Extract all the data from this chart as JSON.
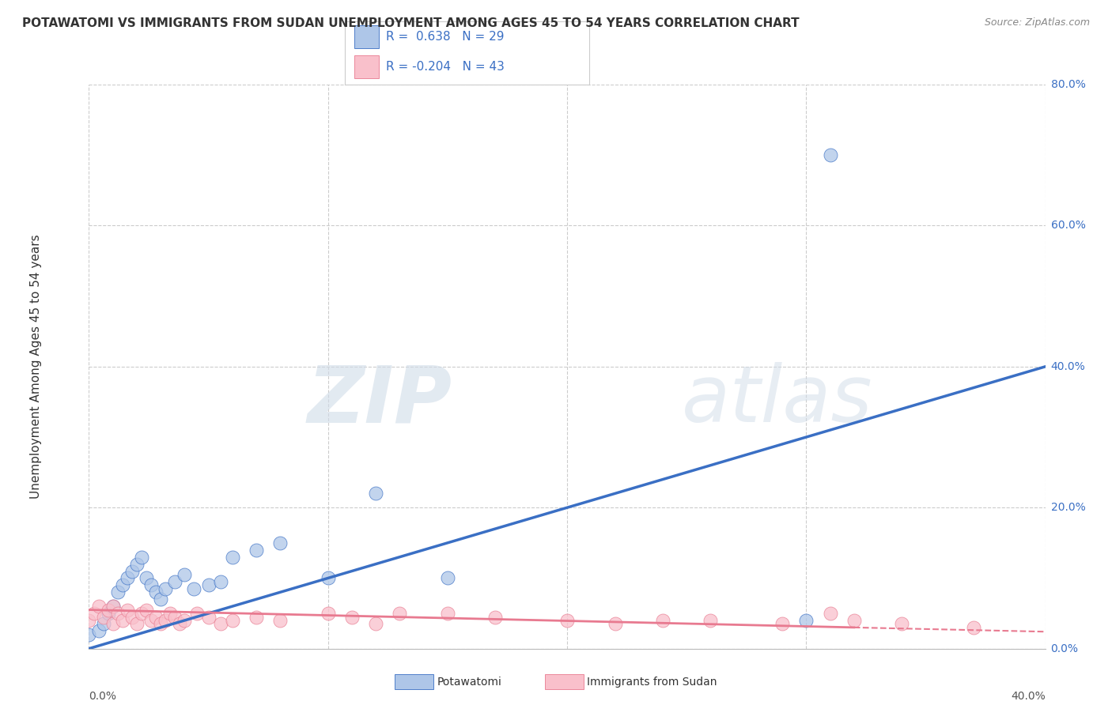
{
  "title": "POTAWATOMI VS IMMIGRANTS FROM SUDAN UNEMPLOYMENT AMONG AGES 45 TO 54 YEARS CORRELATION CHART",
  "source": "Source: ZipAtlas.com",
  "ylabel": "Unemployment Among Ages 45 to 54 years",
  "xmin": 0.0,
  "xmax": 0.4,
  "ymin": 0.0,
  "ymax": 0.8,
  "blue_color": "#aec6e8",
  "blue_line_color": "#3a6fc4",
  "pink_color": "#f9c0cb",
  "pink_line_color": "#e87a90",
  "blue_R": 0.638,
  "blue_N": 29,
  "pink_R": -0.204,
  "pink_N": 43,
  "watermark_ZIP": "ZIP",
  "watermark_atlas": "atlas",
  "blue_points_x": [
    0.0,
    0.004,
    0.006,
    0.008,
    0.01,
    0.012,
    0.014,
    0.016,
    0.018,
    0.02,
    0.022,
    0.024,
    0.026,
    0.028,
    0.03,
    0.032,
    0.036,
    0.04,
    0.044,
    0.05,
    0.055,
    0.06,
    0.07,
    0.08,
    0.1,
    0.12,
    0.15,
    0.3,
    0.31
  ],
  "blue_points_y": [
    0.02,
    0.025,
    0.035,
    0.05,
    0.06,
    0.08,
    0.09,
    0.1,
    0.11,
    0.12,
    0.13,
    0.1,
    0.09,
    0.08,
    0.07,
    0.085,
    0.095,
    0.105,
    0.085,
    0.09,
    0.095,
    0.13,
    0.14,
    0.15,
    0.1,
    0.22,
    0.1,
    0.04,
    0.7
  ],
  "pink_points_x": [
    0.0,
    0.002,
    0.004,
    0.006,
    0.008,
    0.01,
    0.01,
    0.012,
    0.014,
    0.016,
    0.018,
    0.02,
    0.022,
    0.024,
    0.026,
    0.028,
    0.03,
    0.032,
    0.034,
    0.036,
    0.038,
    0.04,
    0.045,
    0.05,
    0.055,
    0.06,
    0.07,
    0.08,
    0.1,
    0.11,
    0.12,
    0.13,
    0.15,
    0.17,
    0.2,
    0.22,
    0.24,
    0.26,
    0.29,
    0.31,
    0.32,
    0.34,
    0.37
  ],
  "pink_points_y": [
    0.04,
    0.05,
    0.06,
    0.045,
    0.055,
    0.035,
    0.06,
    0.05,
    0.04,
    0.055,
    0.045,
    0.035,
    0.05,
    0.055,
    0.04,
    0.045,
    0.035,
    0.04,
    0.05,
    0.045,
    0.035,
    0.04,
    0.05,
    0.045,
    0.035,
    0.04,
    0.045,
    0.04,
    0.05,
    0.045,
    0.035,
    0.05,
    0.05,
    0.045,
    0.04,
    0.035,
    0.04,
    0.04,
    0.035,
    0.05,
    0.04,
    0.035,
    0.03
  ],
  "grid_color": "#cccccc",
  "background_color": "#ffffff",
  "blue_line_start_x": 0.0,
  "blue_line_start_y": 0.0,
  "blue_line_end_x": 0.4,
  "blue_line_end_y": 0.4,
  "pink_line_start_x": 0.0,
  "pink_line_start_y": 0.055,
  "pink_line_end_x": 0.32,
  "pink_line_end_y": 0.03,
  "pink_line_dash_end_x": 0.4,
  "pink_line_dash_end_y": 0.024
}
